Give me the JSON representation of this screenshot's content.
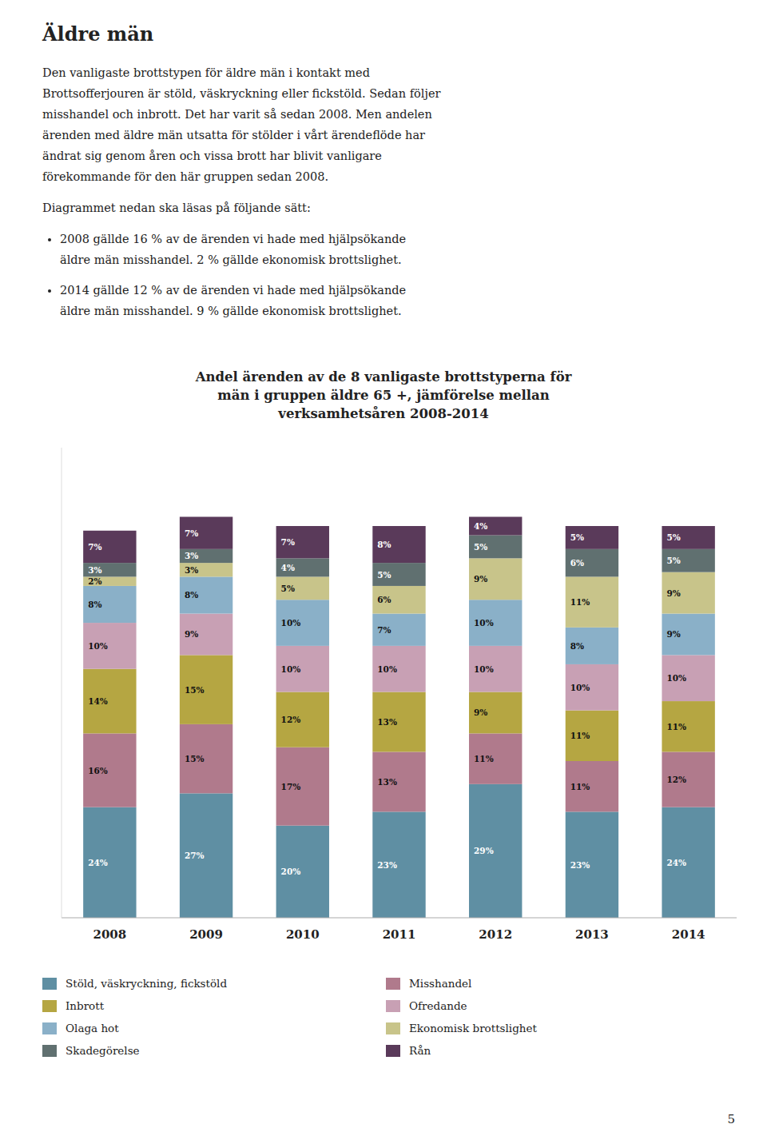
{
  "heading": "Äldre män",
  "body": [
    "Den vanligaste brottstypen för äldre män i kontakt med",
    "Brottsofferjouren är stöld, väskryckning eller fickstöld. Sedan följer",
    "misshandel och inbrott. Det har varit så sedan 2008. Men andelen",
    "ärenden med äldre män utsatta för stölder i vårt ärendeflöde har",
    "ändrat sig genom åren och vissa brott har blivit vanligare",
    "förekommande för den här gruppen sedan 2008."
  ],
  "intro": "Diagrammet nedan ska läsas på följande sätt:",
  "bullets": [
    [
      "2008 gällde 16 % av de ärenden vi hade med hjälpsökande",
      "äldre män misshandel. 2 % gällde ekonomisk brottslighet."
    ],
    [
      "2014 gällde 12 % av de ärenden vi hade med hjälpsökande",
      "äldre män misshandel. 9 % gällde ekonomisk brottslighet."
    ]
  ],
  "page_number": "5",
  "chart_data": {
    "type": "bar",
    "stacked": true,
    "title": "Andel ärenden av de 8 vanligaste brottstyperna för\nmän i gruppen äldre 65 +, jämförelse mellan\nverksamhetsåren 2008-2014",
    "categories": [
      "2008",
      "2009",
      "2010",
      "2011",
      "2012",
      "2013",
      "2014"
    ],
    "ylim": [
      0,
      102
    ],
    "tick_labels": "x",
    "grid": false,
    "data_labels": true,
    "legend": "bottom",
    "series": [
      {
        "name": "Stöld, väskryckning, fickstöld",
        "color": "#5f8fa3",
        "values": [
          24,
          27,
          20,
          23,
          29,
          23,
          24
        ],
        "value_labels": [
          "24%",
          "27%",
          "20%",
          "23%",
          "29%",
          "23%",
          "24%"
        ]
      },
      {
        "name": "Misshandel",
        "color": "#b07a8c",
        "values": [
          16,
          15,
          17,
          13,
          11,
          11,
          12
        ],
        "value_labels": [
          "16%",
          "15%",
          "17%",
          "13%",
          "11%",
          "11%",
          "12%"
        ]
      },
      {
        "name": "Inbrott",
        "color": "#b5a642",
        "values": [
          14,
          15,
          12,
          13,
          9,
          11,
          11
        ],
        "value_labels": [
          "14%",
          "15%",
          "12%",
          "13%",
          "9%",
          "11%",
          "11%"
        ]
      },
      {
        "name": "Ofredande",
        "color": "#c8a0b4",
        "values": [
          10,
          9,
          10,
          10,
          10,
          10,
          10
        ],
        "value_labels": [
          "10%",
          "9%",
          "10%",
          "10%",
          "10%",
          "10%",
          "10%"
        ]
      },
      {
        "name": "Olaga hot",
        "color": "#8ab0c8",
        "values": [
          8,
          8,
          10,
          7,
          10,
          8,
          9
        ],
        "value_labels": [
          "8%",
          "8%",
          "10%",
          "7%",
          "10%",
          "8%",
          "9%"
        ]
      },
      {
        "name": "Ekonomisk brottslighet",
        "color": "#c8c48a",
        "values": [
          2,
          3,
          5,
          6,
          9,
          11,
          9
        ],
        "value_labels": [
          "2%",
          "3%",
          "5%",
          "6%",
          "9%",
          "11%",
          "9%"
        ]
      },
      {
        "name": "Skadegörelse",
        "color": "#607070",
        "values": [
          3,
          3,
          4,
          5,
          5,
          6,
          5
        ],
        "value_labels": [
          "3%",
          "3%",
          "4%",
          "5%",
          "5%",
          "6%",
          "5%"
        ]
      },
      {
        "name": "Rån",
        "color": "#5a3a5a",
        "values": [
          7,
          7,
          7,
          8,
          4,
          5,
          5
        ],
        "value_labels": [
          "7%",
          "7%",
          "7%",
          "8%",
          "4%",
          "5%",
          "5%"
        ]
      }
    ]
  }
}
